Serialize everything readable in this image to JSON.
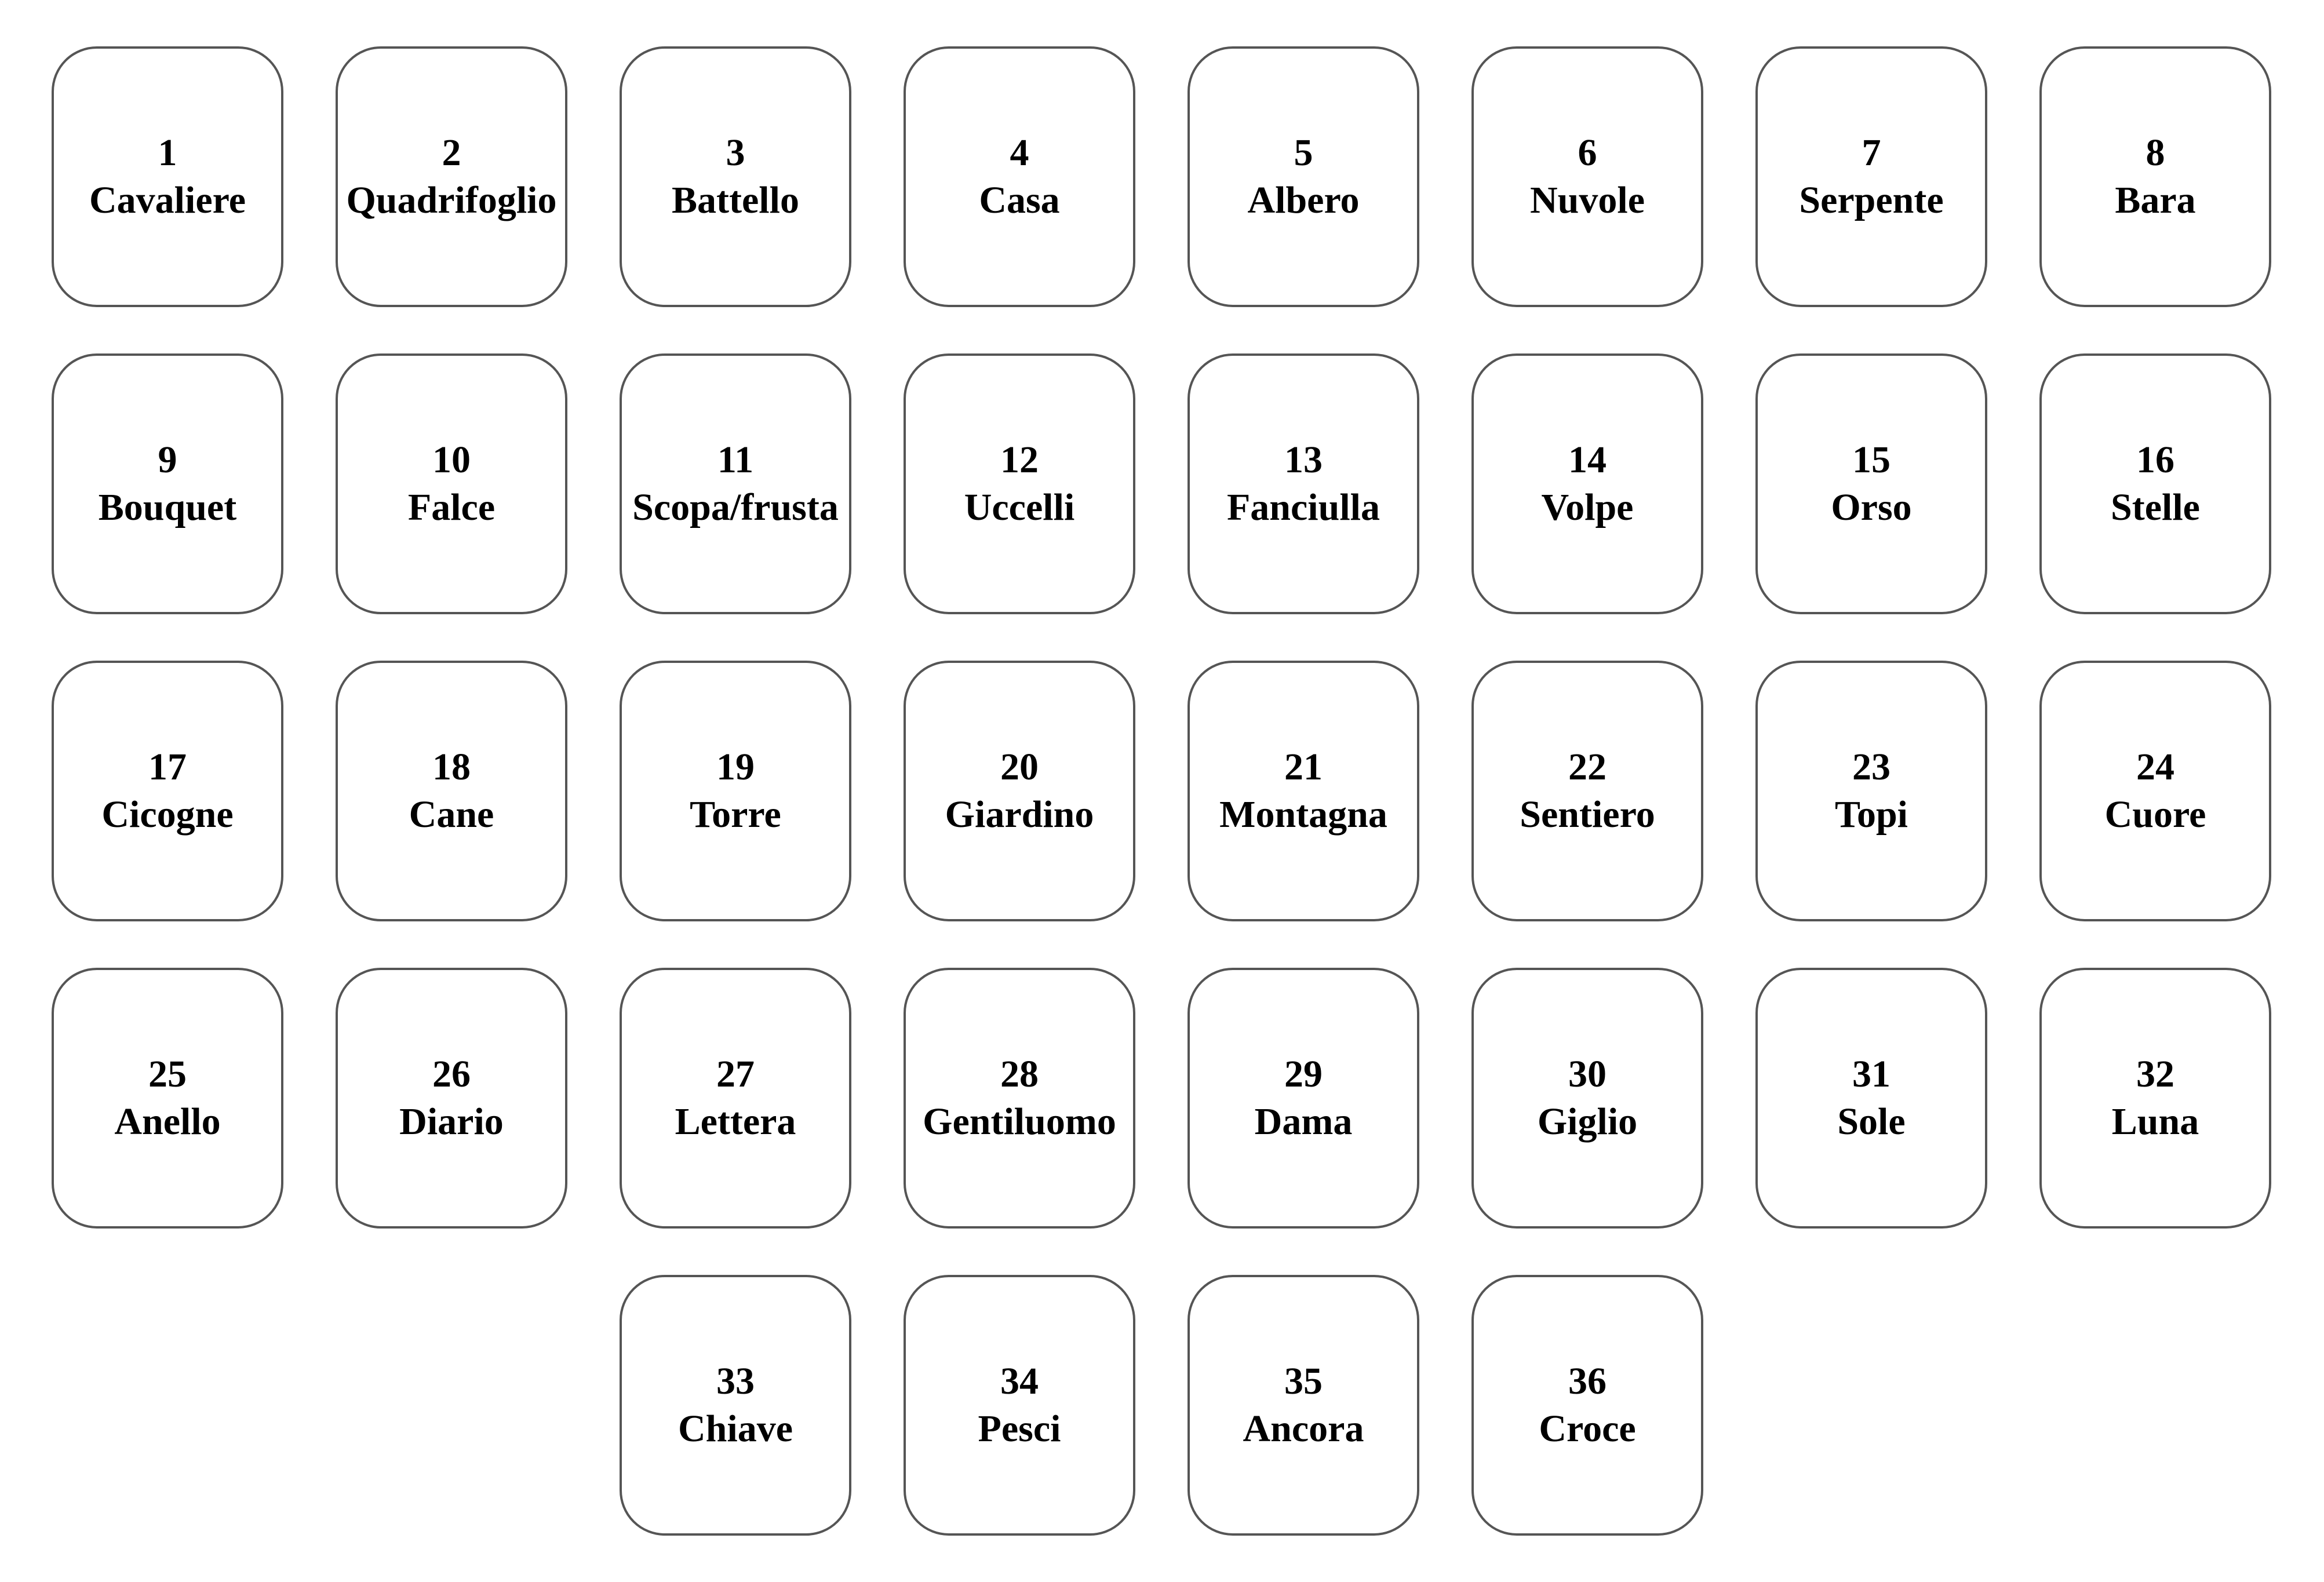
{
  "cards": [
    {
      "number": "1",
      "name": "Cavaliere"
    },
    {
      "number": "2",
      "name": "Quadrifoglio"
    },
    {
      "number": "3",
      "name": "Battello"
    },
    {
      "number": "4",
      "name": "Casa"
    },
    {
      "number": "5",
      "name": "Albero"
    },
    {
      "number": "6",
      "name": "Nuvole"
    },
    {
      "number": "7",
      "name": "Serpente"
    },
    {
      "number": "8",
      "name": "Bara"
    },
    {
      "number": "9",
      "name": "Bouquet"
    },
    {
      "number": "10",
      "name": "Falce"
    },
    {
      "number": "11",
      "name": "Scopa/frusta"
    },
    {
      "number": "12",
      "name": "Uccelli"
    },
    {
      "number": "13",
      "name": "Fanciulla"
    },
    {
      "number": "14",
      "name": "Volpe"
    },
    {
      "number": "15",
      "name": "Orso"
    },
    {
      "number": "16",
      "name": "Stelle"
    },
    {
      "number": "17",
      "name": "Cicogne"
    },
    {
      "number": "18",
      "name": "Cane"
    },
    {
      "number": "19",
      "name": "Torre"
    },
    {
      "number": "20",
      "name": "Giardino"
    },
    {
      "number": "21",
      "name": "Montagna"
    },
    {
      "number": "22",
      "name": "Sentiero"
    },
    {
      "number": "23",
      "name": "Topi"
    },
    {
      "number": "24",
      "name": "Cuore"
    },
    {
      "number": "25",
      "name": "Anello"
    },
    {
      "number": "26",
      "name": "Diario"
    },
    {
      "number": "27",
      "name": "Lettera"
    },
    {
      "number": "28",
      "name": "Gentiluomo"
    },
    {
      "number": "29",
      "name": "Dama"
    },
    {
      "number": "30",
      "name": "Giglio"
    },
    {
      "number": "31",
      "name": "Sole"
    },
    {
      "number": "32",
      "name": "Luna"
    },
    {
      "number": "33",
      "name": "Chiave"
    },
    {
      "number": "34",
      "name": "Pesci"
    },
    {
      "number": "35",
      "name": "Ancora"
    },
    {
      "number": "36",
      "name": "Croce"
    }
  ]
}
